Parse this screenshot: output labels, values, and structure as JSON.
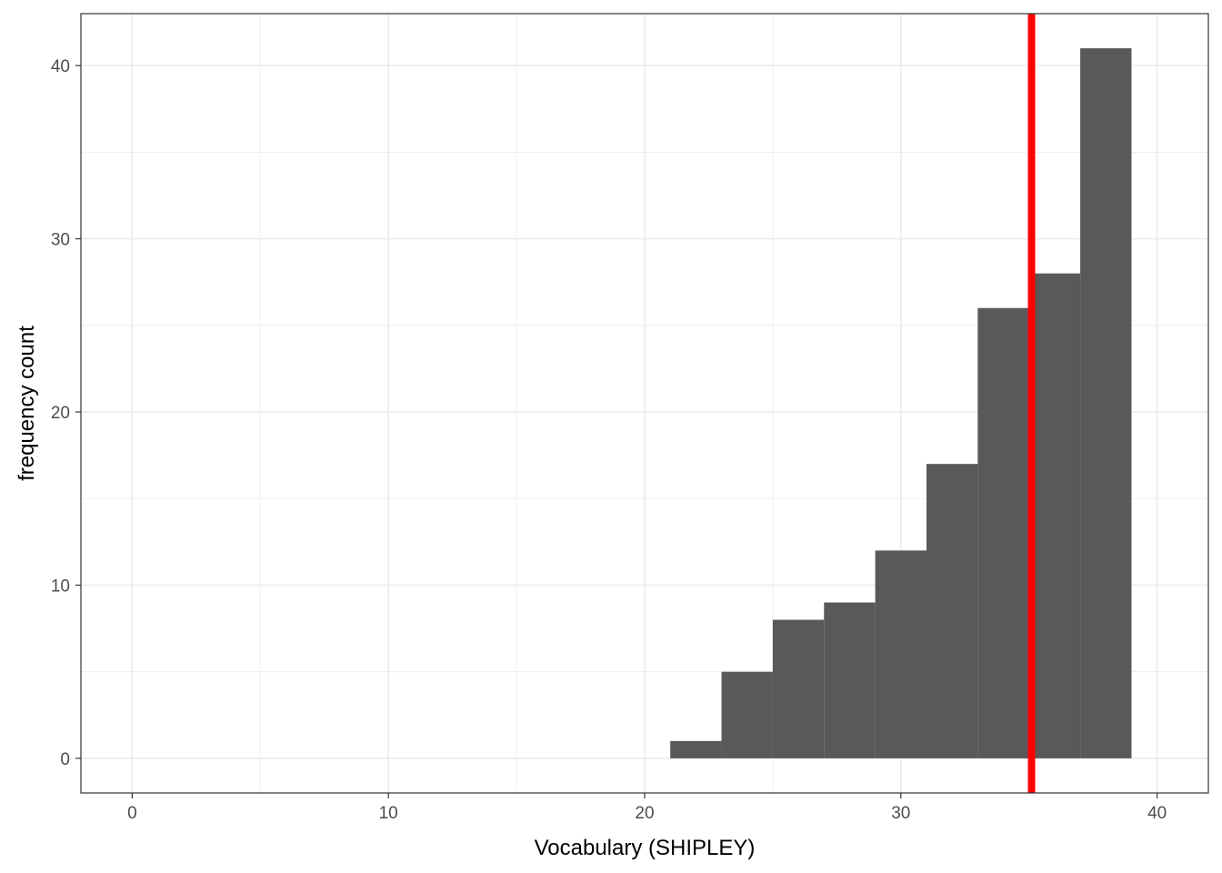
{
  "chart_data": {
    "type": "bar",
    "subtype": "histogram",
    "title": "",
    "xlabel": "Vocabulary (SHIPLEY)",
    "ylabel": "frequency count",
    "xlim": [
      -2,
      42
    ],
    "ylim": [
      -2,
      43
    ],
    "x_ticks": [
      0,
      10,
      20,
      30,
      40
    ],
    "y_ticks": [
      0,
      10,
      20,
      30,
      40
    ],
    "x_tick_labels": [
      "0",
      "10",
      "20",
      "30",
      "40"
    ],
    "y_tick_labels": [
      "0",
      "10",
      "20",
      "30",
      "40"
    ],
    "grid": true,
    "bins": [
      {
        "x0": 21,
        "x1": 23,
        "count": 1
      },
      {
        "x0": 23,
        "x1": 25,
        "count": 5
      },
      {
        "x0": 25,
        "x1": 27,
        "count": 8
      },
      {
        "x0": 27,
        "x1": 29,
        "count": 9
      },
      {
        "x0": 29,
        "x1": 31,
        "count": 12
      },
      {
        "x0": 31,
        "x1": 33,
        "count": 17
      },
      {
        "x0": 33,
        "x1": 35,
        "count": 26
      },
      {
        "x0": 35,
        "x1": 37,
        "count": 28
      },
      {
        "x0": 37,
        "x1": 39,
        "count": 41
      }
    ],
    "reference_line": {
      "x": 35.1,
      "orientation": "vertical"
    },
    "colors": {
      "bar": "#595959",
      "reference_line": "#ff0000",
      "grid": "#ebebeb",
      "panel_border": "#333333",
      "tick_label": "#4d4d4d"
    }
  }
}
